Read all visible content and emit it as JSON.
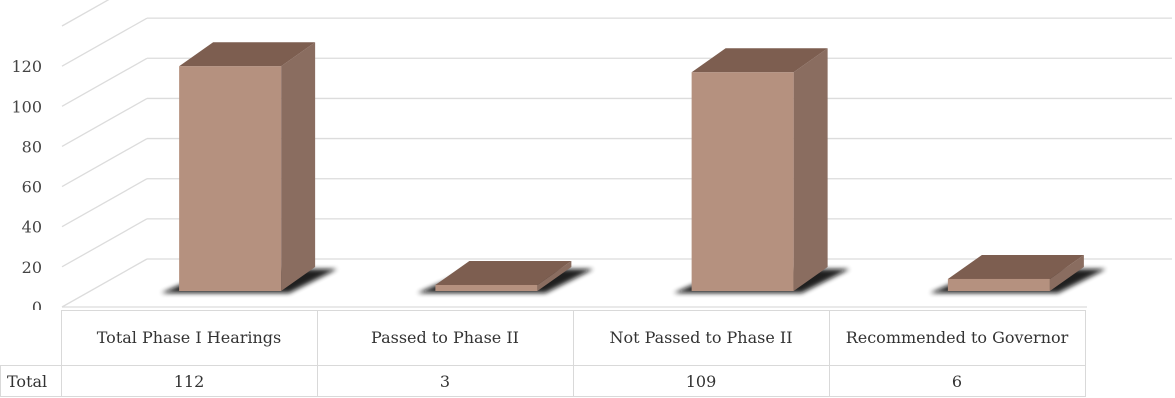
{
  "chart_data": {
    "type": "bar",
    "categories": [
      "Total Phase I Hearings",
      "Passed to Phase II",
      "Not Passed to Phase II",
      "Recommended to Governor"
    ],
    "series": [
      {
        "name": "Total",
        "values": [
          112,
          3,
          109,
          6
        ]
      }
    ],
    "yticks": [
      "0",
      "20",
      "40",
      "60",
      "80",
      "100",
      "120"
    ],
    "ylim": [
      0,
      140
    ],
    "grid": true,
    "style": "3d-column",
    "colors": {
      "front": "#b5917f",
      "side": "#8a6d60",
      "top": "#7d5e50",
      "shadow": "#111111",
      "grid": "#dcdcdc"
    }
  },
  "table": {
    "row_label": "Total",
    "values": [
      "112",
      "3",
      "109",
      "6"
    ]
  }
}
